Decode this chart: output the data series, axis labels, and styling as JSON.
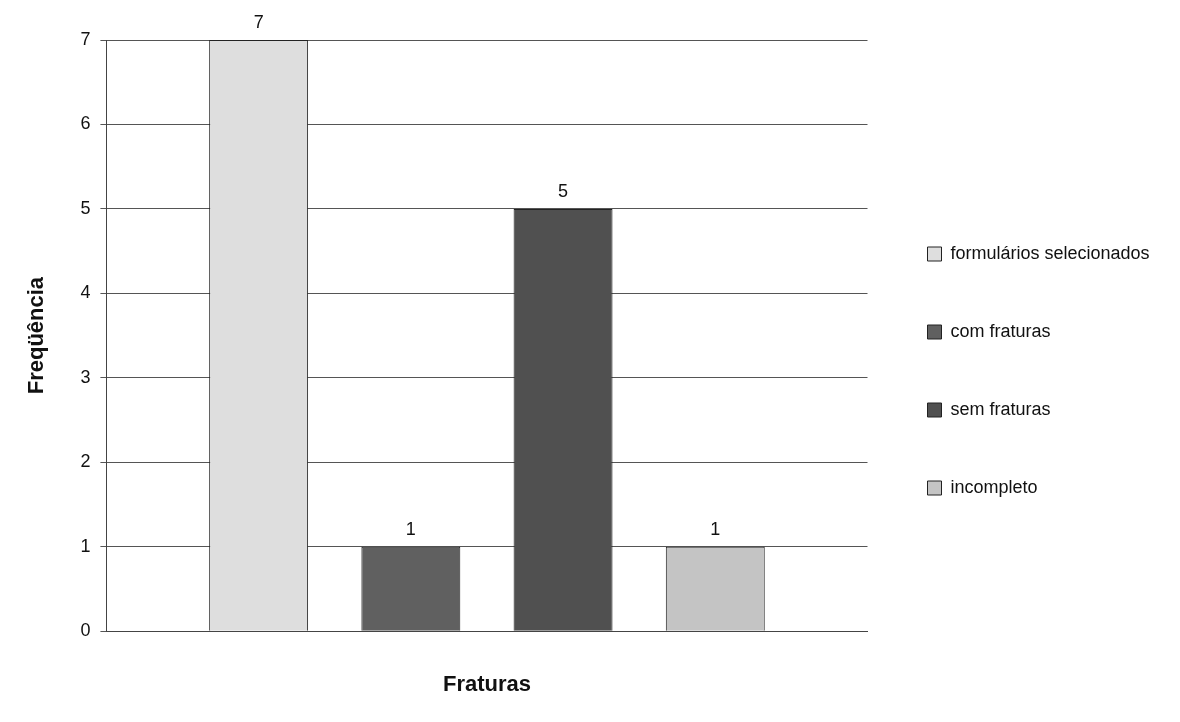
{
  "chart_data": {
    "type": "bar",
    "xlabel": "Fraturas",
    "ylabel": "Freqüência",
    "categories": [
      null
    ],
    "series": [
      {
        "name": "formulários selecionados",
        "color": "#dedede",
        "values": [
          7
        ]
      },
      {
        "name": "com fraturas",
        "color": "#606060",
        "values": [
          1
        ]
      },
      {
        "name": "sem fraturas",
        "color": "#505050",
        "values": [
          5
        ]
      },
      {
        "name": "incompleto",
        "color": "#c4c4c4",
        "values": [
          1
        ]
      }
    ],
    "ylim": [
      0,
      7
    ],
    "yticks": [
      0,
      1,
      2,
      3,
      4,
      5,
      6,
      7
    ],
    "grid": "y",
    "legend": "right",
    "data_labels": true
  }
}
